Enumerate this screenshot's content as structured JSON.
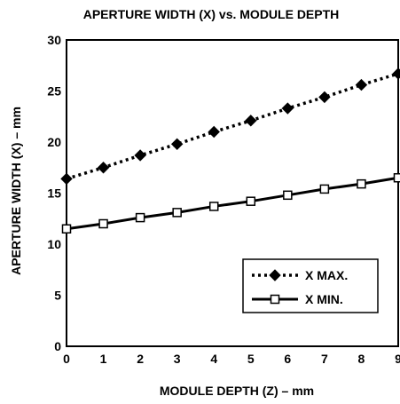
{
  "chart_data": {
    "type": "line",
    "title": "APERTURE WIDTH (X) vs. MODULE DEPTH",
    "xlabel": "MODULE DEPTH (Z) – mm",
    "ylabel": "APERTURE WIDTH (X) – mm",
    "x": [
      0,
      1,
      2,
      3,
      4,
      5,
      6,
      7,
      8,
      9
    ],
    "xlim": [
      0,
      9
    ],
    "ylim": [
      0,
      30
    ],
    "x_ticks": [
      0,
      1,
      2,
      3,
      4,
      5,
      6,
      7,
      8,
      9
    ],
    "y_ticks": [
      0,
      5,
      10,
      15,
      20,
      25,
      30
    ],
    "grid": true,
    "legend_position": "lower-right",
    "series": [
      {
        "name": "X MAX.",
        "line_style": "dotted",
        "marker": "filled-diamond",
        "values": [
          16.4,
          17.5,
          18.7,
          19.8,
          21.0,
          22.1,
          23.3,
          24.4,
          25.6,
          26.7
        ]
      },
      {
        "name": "X MIN.",
        "line_style": "solid",
        "marker": "open-square",
        "values": [
          11.5,
          12.0,
          12.6,
          13.1,
          13.7,
          14.2,
          14.8,
          15.4,
          15.9,
          16.5
        ]
      }
    ],
    "colors": {
      "line": "#000000",
      "marker_fill_open": "#ffffff",
      "background": "#ffffff"
    }
  }
}
